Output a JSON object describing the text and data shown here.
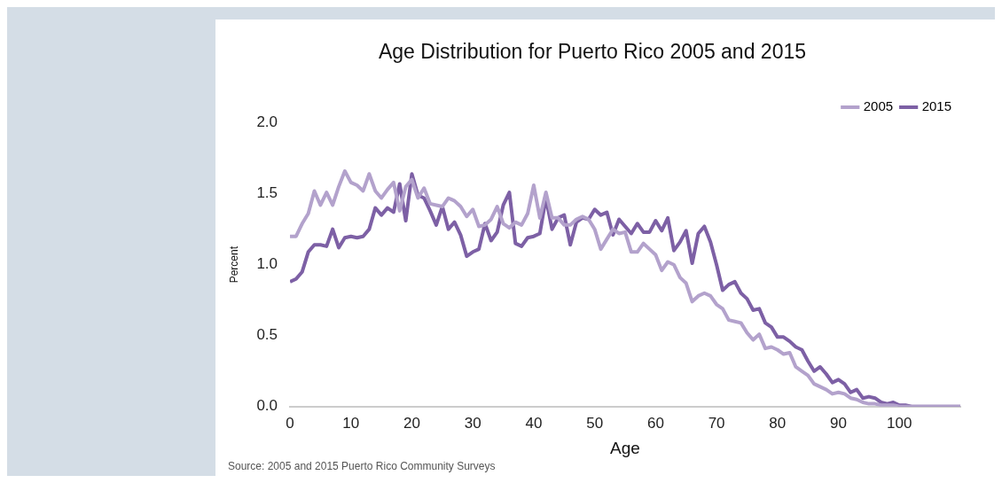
{
  "chart_data": {
    "type": "line",
    "title": "Age Distribution for Puerto Rico 2005 and 2015",
    "xlabel": "Age",
    "ylabel": "Percent",
    "annotations": [
      "Source: 2005 and 2015 Puerto Rico Community Surveys"
    ],
    "x": [
      0,
      1,
      2,
      3,
      4,
      5,
      6,
      7,
      8,
      9,
      10,
      11,
      12,
      13,
      14,
      15,
      16,
      17,
      18,
      19,
      20,
      21,
      22,
      23,
      24,
      25,
      26,
      27,
      28,
      29,
      30,
      31,
      32,
      33,
      34,
      35,
      36,
      37,
      38,
      39,
      40,
      41,
      42,
      43,
      44,
      45,
      46,
      47,
      48,
      49,
      50,
      51,
      52,
      53,
      54,
      55,
      56,
      57,
      58,
      59,
      60,
      61,
      62,
      63,
      64,
      65,
      66,
      67,
      68,
      69,
      70,
      71,
      72,
      73,
      74,
      75,
      76,
      77,
      78,
      79,
      80,
      81,
      82,
      83,
      84,
      85,
      86,
      87,
      88,
      89,
      90,
      91,
      92,
      93,
      94,
      95,
      96,
      97,
      98,
      99,
      100,
      101,
      102,
      103,
      104,
      105,
      106,
      107,
      108,
      109,
      110
    ],
    "series": [
      {
        "name": "2005",
        "color": "#b3a2cc",
        "values": [
          1.2,
          1.2,
          1.29,
          1.36,
          1.52,
          1.42,
          1.51,
          1.42,
          1.55,
          1.66,
          1.58,
          1.56,
          1.52,
          1.64,
          1.52,
          1.47,
          1.53,
          1.58,
          1.38,
          1.55,
          1.6,
          1.47,
          1.54,
          1.43,
          1.42,
          1.41,
          1.47,
          1.45,
          1.41,
          1.34,
          1.39,
          1.27,
          1.28,
          1.32,
          1.41,
          1.29,
          1.26,
          1.3,
          1.28,
          1.36,
          1.56,
          1.33,
          1.51,
          1.33,
          1.33,
          1.28,
          1.28,
          1.32,
          1.34,
          1.32,
          1.25,
          1.11,
          1.18,
          1.25,
          1.22,
          1.23,
          1.09,
          1.09,
          1.15,
          1.11,
          1.07,
          0.96,
          1.02,
          1.0,
          0.91,
          0.87,
          0.74,
          0.78,
          0.8,
          0.78,
          0.72,
          0.69,
          0.61,
          0.6,
          0.59,
          0.52,
          0.47,
          0.51,
          0.41,
          0.42,
          0.4,
          0.37,
          0.38,
          0.28,
          0.25,
          0.22,
          0.16,
          0.14,
          0.12,
          0.09,
          0.1,
          0.09,
          0.06,
          0.05,
          0.03,
          0.02,
          0.02,
          0.01,
          0.01,
          0.01,
          0.0,
          0.0,
          0.0,
          0.0,
          0.0,
          0.0,
          0.0,
          0.0,
          0.0,
          0.0,
          0.0
        ]
      },
      {
        "name": "2015",
        "color": "#7d60a5",
        "values": [
          0.88,
          0.9,
          0.95,
          1.09,
          1.14,
          1.14,
          1.13,
          1.25,
          1.12,
          1.19,
          1.2,
          1.19,
          1.2,
          1.25,
          1.4,
          1.35,
          1.4,
          1.37,
          1.57,
          1.31,
          1.64,
          1.49,
          1.47,
          1.38,
          1.28,
          1.41,
          1.25,
          1.3,
          1.21,
          1.06,
          1.09,
          1.11,
          1.29,
          1.17,
          1.23,
          1.42,
          1.51,
          1.15,
          1.13,
          1.19,
          1.2,
          1.22,
          1.47,
          1.25,
          1.33,
          1.35,
          1.14,
          1.3,
          1.33,
          1.32,
          1.39,
          1.35,
          1.37,
          1.21,
          1.32,
          1.27,
          1.22,
          1.29,
          1.23,
          1.23,
          1.31,
          1.24,
          1.33,
          1.1,
          1.16,
          1.24,
          1.01,
          1.22,
          1.27,
          1.16,
          1.0,
          0.82,
          0.86,
          0.88,
          0.8,
          0.76,
          0.68,
          0.69,
          0.59,
          0.56,
          0.49,
          0.49,
          0.46,
          0.42,
          0.4,
          0.32,
          0.25,
          0.28,
          0.23,
          0.17,
          0.19,
          0.16,
          0.1,
          0.12,
          0.06,
          0.07,
          0.06,
          0.03,
          0.02,
          0.03,
          0.01,
          0.01,
          0.0,
          0.0,
          0.0,
          0.0,
          0.0,
          0.0,
          0.0,
          0.0,
          0.0
        ]
      }
    ],
    "xlim": [
      0,
      110
    ],
    "xticks": [
      0,
      10,
      20,
      30,
      40,
      50,
      60,
      70,
      80,
      90,
      100
    ],
    "ylim": [
      0,
      2
    ],
    "yticks": [
      {
        "value": 0,
        "label": "0.0"
      },
      {
        "value": 0.5,
        "label": "0.5"
      },
      {
        "value": 1,
        "label": "1.0"
      },
      {
        "value": 1.5,
        "label": "1.5"
      },
      {
        "value": 2,
        "label": "2.0"
      }
    ],
    "grid": false,
    "legend": "top right",
    "marker": "none",
    "line_style": "solid"
  }
}
